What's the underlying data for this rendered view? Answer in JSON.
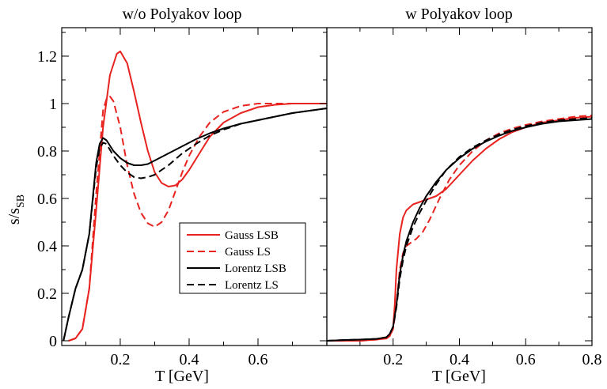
{
  "figure": {
    "ylabel_main": "s/s",
    "ylabel_sub": "SB"
  },
  "legend": {
    "entries": [
      {
        "label": "Gauss LSB",
        "color": "#e8231f",
        "dash": "solid"
      },
      {
        "label": "Gauss LS",
        "color": "#e8231f",
        "dash": "dashed"
      },
      {
        "label": "Lorentz LSB",
        "color": "#000000",
        "dash": "solid"
      },
      {
        "label": "Lorentz LS",
        "color": "#000000",
        "dash": "dashed"
      }
    ]
  },
  "chart_data": [
    {
      "type": "line",
      "title": "w/o Polyakov loop",
      "xlabel": "T [GeV]",
      "ylabel": "s/s_SB",
      "xlim": [
        0.03,
        0.8
      ],
      "ylim": [
        -0.02,
        1.32
      ],
      "xticks": [
        0.2,
        0.4,
        0.6
      ],
      "xtick_labels": [
        "0.2",
        "0.4",
        "0.6"
      ],
      "yticks": [
        0,
        0.2,
        0.4,
        0.6,
        0.8,
        1.0,
        1.2
      ],
      "ytick_labels": [
        "0",
        "0.2",
        "0.4",
        "0.6",
        "0.8",
        "1",
        "1.2"
      ],
      "grid": false,
      "series": [
        {
          "name": "Gauss LSB",
          "color": "#e8231f",
          "dash": "solid",
          "x": [
            0.05,
            0.07,
            0.09,
            0.11,
            0.13,
            0.15,
            0.17,
            0.19,
            0.2,
            0.22,
            0.24,
            0.26,
            0.28,
            0.3,
            0.32,
            0.34,
            0.36,
            0.38,
            0.4,
            0.43,
            0.46,
            0.5,
            0.55,
            0.6,
            0.65,
            0.7,
            0.75,
            0.8
          ],
          "y": [
            0.0,
            0.01,
            0.05,
            0.22,
            0.55,
            0.9,
            1.12,
            1.21,
            1.22,
            1.17,
            1.05,
            0.92,
            0.8,
            0.71,
            0.665,
            0.65,
            0.655,
            0.68,
            0.72,
            0.79,
            0.86,
            0.92,
            0.96,
            0.985,
            0.995,
            1.0,
            1.0,
            1.0
          ]
        },
        {
          "name": "Gauss LS",
          "color": "#e8231f",
          "dash": "dashed",
          "x": [
            0.05,
            0.07,
            0.09,
            0.11,
            0.13,
            0.15,
            0.16,
            0.17,
            0.18,
            0.2,
            0.22,
            0.24,
            0.26,
            0.28,
            0.3,
            0.32,
            0.34,
            0.36,
            0.38,
            0.4,
            0.43,
            0.46,
            0.5,
            0.55,
            0.6,
            0.65,
            0.7,
            0.75,
            0.8
          ],
          "y": [
            0.0,
            0.01,
            0.05,
            0.22,
            0.62,
            0.97,
            1.02,
            1.03,
            1.01,
            0.9,
            0.74,
            0.62,
            0.54,
            0.495,
            0.48,
            0.5,
            0.55,
            0.63,
            0.71,
            0.78,
            0.86,
            0.92,
            0.965,
            0.99,
            1.0,
            1.0,
            1.0,
            1.0,
            1.0
          ]
        },
        {
          "name": "Lorentz LSB",
          "color": "#000000",
          "dash": "solid",
          "x": [
            0.035,
            0.05,
            0.07,
            0.09,
            0.11,
            0.13,
            0.14,
            0.15,
            0.16,
            0.18,
            0.2,
            0.22,
            0.24,
            0.26,
            0.28,
            0.3,
            0.34,
            0.38,
            0.42,
            0.46,
            0.5,
            0.55,
            0.6,
            0.65,
            0.7,
            0.75,
            0.8
          ],
          "y": [
            0.0,
            0.1,
            0.22,
            0.3,
            0.45,
            0.75,
            0.83,
            0.855,
            0.845,
            0.8,
            0.77,
            0.75,
            0.74,
            0.74,
            0.745,
            0.76,
            0.79,
            0.82,
            0.85,
            0.875,
            0.895,
            0.915,
            0.93,
            0.945,
            0.96,
            0.97,
            0.98
          ]
        },
        {
          "name": "Lorentz LS",
          "color": "#000000",
          "dash": "dashed",
          "x": [
            0.035,
            0.05,
            0.07,
            0.09,
            0.11,
            0.13,
            0.14,
            0.15,
            0.16,
            0.18,
            0.2,
            0.22,
            0.24,
            0.26,
            0.28,
            0.3,
            0.34,
            0.38,
            0.42,
            0.46,
            0.5,
            0.55,
            0.6,
            0.65,
            0.7,
            0.75,
            0.8
          ],
          "y": [
            0.0,
            0.1,
            0.22,
            0.3,
            0.45,
            0.73,
            0.81,
            0.835,
            0.83,
            0.78,
            0.74,
            0.71,
            0.69,
            0.685,
            0.69,
            0.7,
            0.74,
            0.79,
            0.83,
            0.865,
            0.89,
            0.915,
            0.93,
            0.945,
            0.96,
            0.97,
            0.98
          ]
        }
      ]
    },
    {
      "type": "line",
      "title": "w Polyakov loop",
      "xlabel": "T [GeV]",
      "ylabel": "",
      "xlim": [
        0.0,
        0.8
      ],
      "ylim": [
        -0.02,
        1.32
      ],
      "xticks": [
        0.2,
        0.4,
        0.6,
        0.8
      ],
      "xtick_labels": [
        "0.2",
        "0.4",
        "0.6",
        "0.8"
      ],
      "yticks": [
        0,
        0.2,
        0.4,
        0.6,
        0.8,
        1.0,
        1.2
      ],
      "ytick_labels": [],
      "grid": false,
      "series": [
        {
          "name": "Gauss LSB",
          "color": "#e8231f",
          "dash": "solid",
          "x": [
            0.0,
            0.1,
            0.15,
            0.18,
            0.19,
            0.2,
            0.205,
            0.21,
            0.22,
            0.23,
            0.24,
            0.26,
            0.28,
            0.3,
            0.33,
            0.36,
            0.4,
            0.44,
            0.48,
            0.52,
            0.56,
            0.6,
            0.65,
            0.7,
            0.75,
            0.8
          ],
          "y": [
            0.0,
            0.0,
            0.005,
            0.01,
            0.02,
            0.06,
            0.15,
            0.3,
            0.45,
            0.52,
            0.55,
            0.575,
            0.585,
            0.595,
            0.61,
            0.64,
            0.7,
            0.76,
            0.81,
            0.85,
            0.88,
            0.9,
            0.92,
            0.93,
            0.94,
            0.945
          ]
        },
        {
          "name": "Gauss LS",
          "color": "#e8231f",
          "dash": "dashed",
          "x": [
            0.0,
            0.1,
            0.15,
            0.18,
            0.19,
            0.2,
            0.21,
            0.22,
            0.23,
            0.24,
            0.25,
            0.27,
            0.29,
            0.31,
            0.34,
            0.37,
            0.4,
            0.44,
            0.48,
            0.52,
            0.56,
            0.6,
            0.65,
            0.7,
            0.75,
            0.8
          ],
          "y": [
            0.0,
            0.0,
            0.005,
            0.01,
            0.02,
            0.05,
            0.15,
            0.3,
            0.37,
            0.4,
            0.41,
            0.43,
            0.46,
            0.51,
            0.6,
            0.68,
            0.74,
            0.8,
            0.845,
            0.875,
            0.895,
            0.91,
            0.925,
            0.935,
            0.945,
            0.95
          ]
        },
        {
          "name": "Lorentz LSB",
          "color": "#000000",
          "dash": "solid",
          "x": [
            0.0,
            0.05,
            0.1,
            0.15,
            0.18,
            0.19,
            0.2,
            0.21,
            0.22,
            0.23,
            0.24,
            0.26,
            0.28,
            0.3,
            0.33,
            0.36,
            0.4,
            0.44,
            0.48,
            0.52,
            0.56,
            0.6,
            0.65,
            0.7,
            0.75,
            0.8
          ],
          "y": [
            0.0,
            0.003,
            0.005,
            0.008,
            0.015,
            0.03,
            0.06,
            0.15,
            0.28,
            0.36,
            0.42,
            0.5,
            0.56,
            0.61,
            0.67,
            0.72,
            0.77,
            0.81,
            0.84,
            0.865,
            0.885,
            0.9,
            0.915,
            0.925,
            0.93,
            0.935
          ]
        },
        {
          "name": "Lorentz LS",
          "color": "#000000",
          "dash": "dashed",
          "x": [
            0.0,
            0.05,
            0.1,
            0.15,
            0.18,
            0.19,
            0.2,
            0.21,
            0.22,
            0.23,
            0.24,
            0.26,
            0.28,
            0.3,
            0.33,
            0.36,
            0.4,
            0.44,
            0.48,
            0.52,
            0.56,
            0.6,
            0.65,
            0.7,
            0.75,
            0.8
          ],
          "y": [
            0.0,
            0.003,
            0.005,
            0.008,
            0.015,
            0.03,
            0.06,
            0.14,
            0.26,
            0.34,
            0.4,
            0.48,
            0.54,
            0.59,
            0.66,
            0.72,
            0.775,
            0.815,
            0.845,
            0.87,
            0.89,
            0.905,
            0.92,
            0.93,
            0.935,
            0.94
          ]
        }
      ]
    }
  ]
}
